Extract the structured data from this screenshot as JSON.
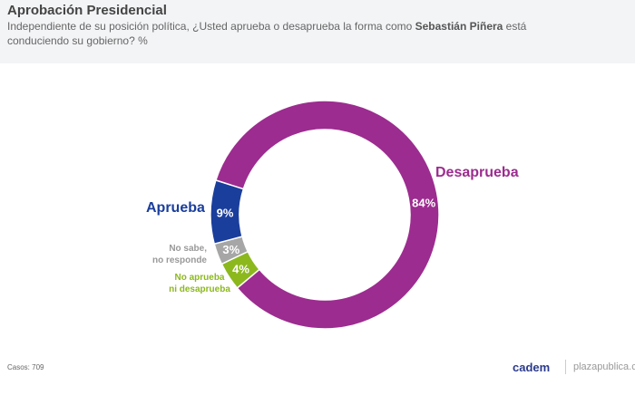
{
  "header": {
    "title": "Aprobación Presidencial",
    "subtitle_pre": "Independiente de su posición política, ¿Usted aprueba o desaprueba la forma como ",
    "subtitle_bold": "Sebastián Piñera",
    "subtitle_post": " está conduciendo su gobierno? %"
  },
  "chart_data": {
    "type": "pie",
    "donut": true,
    "title": "Aprobación Presidencial",
    "categories": [
      "No aprueba ni desaprueba",
      "No sabe, no responde",
      "Aprueba",
      "Desaprueba"
    ],
    "values": [
      4,
      3,
      9,
      84
    ],
    "value_labels": [
      "4%",
      "3%",
      "9%",
      "84%"
    ],
    "colors": [
      "#8cb81e",
      "#a6a6a6",
      "#1a3e9c",
      "#9c2c8f"
    ]
  },
  "labels": {
    "desaprueba": "Desaprueba",
    "aprueba": "Aprueba",
    "ns1": "No sabe,",
    "ns2": "no responde",
    "na1": "No aprueba",
    "na2": "ni desaprueba"
  },
  "footer": {
    "casos": "Casos: 709",
    "logo": "cadem",
    "site": "plazapublica.cl"
  }
}
